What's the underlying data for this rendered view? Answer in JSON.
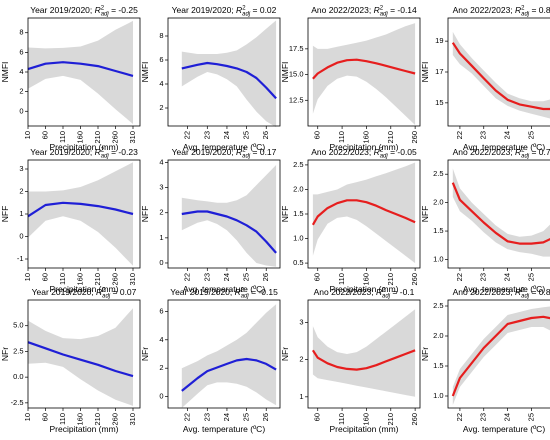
{
  "chart_data": [
    {
      "type": "line",
      "title_prefix": "Year 2019/2020;",
      "title_value": "= -0.25",
      "ylabel": "NMFI",
      "xlabel": "Precipitation (mm)",
      "xlim": [
        10,
        330
      ],
      "xticks": [
        10,
        60,
        110,
        160,
        210,
        260,
        310
      ],
      "ylim": [
        -1.5,
        9.5
      ],
      "yticks": [
        0,
        2,
        4,
        6,
        8
      ],
      "color": "#1f1fd6",
      "series": [
        {
          "x": [
            10,
            60,
            110,
            160,
            210,
            260,
            310
          ],
          "y": [
            4.3,
            4.85,
            5.0,
            4.85,
            4.6,
            4.1,
            3.6
          ],
          "upper": [
            6.5,
            6.4,
            6.45,
            6.6,
            7.2,
            8.3,
            9.2
          ],
          "lower": [
            2.3,
            3.3,
            3.6,
            3.2,
            1.8,
            0.2,
            -1.3
          ]
        }
      ]
    },
    {
      "type": "line",
      "title_prefix": "Year 2019/2020;",
      "title_value": "= 0.02",
      "ylabel": "NMFI",
      "xlabel": "Avg. temperature (ºC)",
      "xlim": [
        21,
        26.7
      ],
      "xticks": [
        22,
        23,
        24,
        25,
        26
      ],
      "ylim": [
        0.5,
        9.5
      ],
      "yticks": [
        2,
        4,
        6,
        8
      ],
      "color": "#1f1fd6",
      "series": [
        {
          "x": [
            21.7,
            22.5,
            23,
            23.5,
            24,
            24.5,
            25,
            25.5,
            26,
            26.5
          ],
          "y": [
            5.3,
            5.6,
            5.75,
            5.65,
            5.5,
            5.3,
            5.0,
            4.5,
            3.7,
            2.8
          ],
          "upper": [
            6.7,
            6.5,
            6.5,
            6.5,
            6.6,
            6.8,
            7.3,
            7.9,
            8.6,
            9.3
          ],
          "lower": [
            3.8,
            4.6,
            5.0,
            4.8,
            4.4,
            3.8,
            2.7,
            1.7,
            0.9,
            0.4
          ]
        }
      ]
    },
    {
      "type": "line",
      "title_prefix": "Ano 2022/2023;",
      "title_value": "= -0.14",
      "ylabel": "NMFI",
      "xlabel": "Precipitation (mm)",
      "xlim": [
        40,
        270
      ],
      "xticks": [
        60,
        110,
        160,
        210,
        260
      ],
      "ylim": [
        10,
        20.5
      ],
      "yticks": [
        12.5,
        15.0,
        17.5
      ],
      "color": "#e61e1e",
      "series": [
        {
          "x": [
            50,
            60,
            80,
            100,
            120,
            140,
            160,
            180,
            200,
            220,
            240,
            260
          ],
          "y": [
            14.6,
            15.1,
            15.7,
            16.15,
            16.4,
            16.45,
            16.3,
            16.1,
            15.85,
            15.6,
            15.35,
            15.1
          ],
          "upper": [
            17.8,
            17.5,
            17.5,
            17.7,
            17.9,
            18.1,
            18.3,
            18.6,
            18.9,
            19.3,
            19.7,
            20.0
          ],
          "lower": [
            11.2,
            12.6,
            13.9,
            14.6,
            14.9,
            14.8,
            14.3,
            13.6,
            12.8,
            11.9,
            11.0,
            10.1
          ]
        }
      ]
    },
    {
      "type": "line",
      "title_prefix": "Ano 2022/2023;",
      "title_value": "= 0.86",
      "ylabel": "NMFI",
      "xlabel": "Avg. temperature (ºC)",
      "xlim": [
        21.5,
        26.2
      ],
      "xticks": [
        22,
        23,
        24,
        25,
        26
      ],
      "ylim": [
        13.5,
        20.5
      ],
      "yticks": [
        15,
        17,
        19
      ],
      "color": "#e61e1e",
      "series": [
        {
          "x": [
            21.7,
            22,
            22.5,
            23,
            23.5,
            24,
            24.5,
            25,
            25.5,
            26
          ],
          "y": [
            18.9,
            18.2,
            17.4,
            16.6,
            15.8,
            15.2,
            14.9,
            14.75,
            14.6,
            14.6
          ],
          "upper": [
            19.6,
            18.8,
            17.9,
            17.1,
            16.3,
            15.6,
            15.3,
            15.1,
            15.1,
            15.3
          ],
          "lower": [
            18.1,
            17.5,
            16.9,
            16.1,
            15.3,
            14.8,
            14.5,
            14.3,
            14.1,
            13.9
          ]
        }
      ]
    },
    {
      "type": "line",
      "title_prefix": "Year 2019/2020;",
      "title_value": "= -0.23",
      "ylabel": "NFF",
      "xlabel": "Precipitation (mm)",
      "xlim": [
        10,
        330
      ],
      "xticks": [
        10,
        60,
        110,
        160,
        210,
        260,
        310
      ],
      "ylim": [
        -1.4,
        3.4
      ],
      "yticks": [
        -1,
        0,
        1,
        2,
        3
      ],
      "color": "#1f1fd6",
      "series": [
        {
          "x": [
            10,
            60,
            110,
            160,
            210,
            260,
            310
          ],
          "y": [
            0.9,
            1.4,
            1.5,
            1.45,
            1.35,
            1.2,
            1.0
          ],
          "upper": [
            2.0,
            2.0,
            2.05,
            2.2,
            2.5,
            2.9,
            3.3
          ],
          "lower": [
            -0.05,
            0.7,
            0.9,
            0.7,
            0.2,
            -0.5,
            -1.3
          ]
        }
      ]
    },
    {
      "type": "line",
      "title_prefix": "Year 2019/2020;",
      "title_value": "= 0.17",
      "ylabel": "NFF",
      "xlabel": "Avg. temperature (ºC)",
      "xlim": [
        21,
        26.7
      ],
      "xticks": [
        22,
        23,
        24,
        25,
        26
      ],
      "ylim": [
        -0.2,
        4.1
      ],
      "yticks": [
        0,
        1,
        2,
        3,
        4
      ],
      "color": "#1f1fd6",
      "series": [
        {
          "x": [
            21.7,
            22.5,
            23,
            23.5,
            24,
            24.5,
            25,
            25.5,
            26,
            26.5
          ],
          "y": [
            1.95,
            2.05,
            2.05,
            1.95,
            1.85,
            1.7,
            1.5,
            1.25,
            0.85,
            0.4
          ],
          "upper": [
            2.6,
            2.5,
            2.45,
            2.4,
            2.4,
            2.5,
            2.7,
            3.1,
            3.5,
            3.9
          ],
          "lower": [
            1.3,
            1.6,
            1.7,
            1.55,
            1.3,
            0.9,
            0.4,
            0.0,
            -0.1,
            -0.15
          ]
        }
      ]
    },
    {
      "type": "line",
      "title_prefix": "Ano 2022/2023;",
      "title_value": "= -0.05",
      "ylabel": "NFF",
      "xlabel": "Precipitation (mm)",
      "xlim": [
        40,
        270
      ],
      "xticks": [
        60,
        110,
        160,
        210,
        260
      ],
      "ylim": [
        0.4,
        2.6
      ],
      "yticks": [
        0.5,
        1.0,
        1.5,
        2.0,
        2.5
      ],
      "color": "#e61e1e",
      "series": [
        {
          "x": [
            50,
            60,
            80,
            100,
            120,
            140,
            160,
            180,
            200,
            220,
            240,
            260
          ],
          "y": [
            1.28,
            1.45,
            1.62,
            1.72,
            1.78,
            1.78,
            1.74,
            1.67,
            1.58,
            1.5,
            1.42,
            1.33
          ],
          "upper": [
            1.9,
            1.9,
            1.95,
            2.0,
            2.1,
            2.15,
            2.2,
            2.27,
            2.33,
            2.4,
            2.47,
            2.55
          ],
          "lower": [
            0.65,
            0.98,
            1.3,
            1.42,
            1.45,
            1.38,
            1.25,
            1.1,
            0.95,
            0.8,
            0.65,
            0.5
          ]
        }
      ]
    },
    {
      "type": "line",
      "title_prefix": "Ano 2022/2023;",
      "title_value": "= 0.78",
      "ylabel": "NFF",
      "xlabel": "Avg. temperature (ºC)",
      "xlim": [
        21.5,
        26.2
      ],
      "xticks": [
        22,
        23,
        24,
        25,
        26
      ],
      "ylim": [
        0.85,
        2.75
      ],
      "yticks": [
        1.0,
        1.5,
        2.0,
        2.5
      ],
      "color": "#e61e1e",
      "series": [
        {
          "x": [
            21.7,
            22,
            22.5,
            23,
            23.5,
            24,
            24.5,
            25,
            25.5,
            26
          ],
          "y": [
            2.35,
            2.05,
            1.85,
            1.65,
            1.47,
            1.32,
            1.28,
            1.28,
            1.3,
            1.4
          ],
          "upper": [
            2.6,
            2.25,
            2.0,
            1.8,
            1.6,
            1.45,
            1.4,
            1.42,
            1.5,
            1.7
          ],
          "lower": [
            2.1,
            1.85,
            1.68,
            1.48,
            1.3,
            1.18,
            1.13,
            1.1,
            1.05,
            1.05
          ]
        }
      ]
    },
    {
      "type": "line",
      "title_prefix": "Year 2019/2020;",
      "title_value": "= 0.07",
      "ylabel": "NFr",
      "xlabel": "Precipitation (mm)",
      "xlim": [
        10,
        330
      ],
      "xticks": [
        10,
        60,
        110,
        160,
        210,
        260,
        310
      ],
      "ylim": [
        -3,
        7.5
      ],
      "yticks": [
        -2.5,
        0.0,
        2.5,
        5.0
      ],
      "color": "#1f1fd6",
      "series": [
        {
          "x": [
            10,
            60,
            110,
            160,
            210,
            260,
            310
          ],
          "y": [
            3.4,
            2.8,
            2.2,
            1.7,
            1.2,
            0.6,
            0.1
          ],
          "upper": [
            5.5,
            4.5,
            3.8,
            3.7,
            4.0,
            4.8,
            6.7
          ],
          "lower": [
            1.3,
            1.4,
            1.0,
            -0.2,
            -1.3,
            -2.2,
            -2.8
          ]
        }
      ]
    },
    {
      "type": "line",
      "title_prefix": "Year 2019/2020;",
      "title_value": "= -0.15",
      "ylabel": "NFr",
      "xlabel": "Avg. temperature (ºC)",
      "xlim": [
        21,
        26.7
      ],
      "xticks": [
        22,
        23,
        24,
        25,
        26
      ],
      "ylim": [
        -0.8,
        6.8
      ],
      "yticks": [
        0,
        2,
        4,
        6
      ],
      "color": "#1f1fd6",
      "series": [
        {
          "x": [
            21.7,
            22.5,
            23,
            23.5,
            24,
            24.5,
            25,
            25.5,
            26,
            26.5
          ],
          "y": [
            0.4,
            1.3,
            1.8,
            2.05,
            2.3,
            2.55,
            2.65,
            2.55,
            2.3,
            1.9
          ],
          "upper": [
            2.0,
            2.5,
            2.9,
            3.2,
            3.6,
            4.0,
            4.5,
            5.2,
            5.9,
            6.5
          ],
          "lower": [
            -0.8,
            0.2,
            0.8,
            1.0,
            1.0,
            0.9,
            0.7,
            0.3,
            -0.2,
            -0.6
          ]
        }
      ]
    },
    {
      "type": "line",
      "title_prefix": "Ano 2022/2023;",
      "title_value": "= -0.1",
      "ylabel": "NFr",
      "xlabel": "Precipitation (mm)",
      "xlim": [
        40,
        270
      ],
      "xticks": [
        60,
        110,
        160,
        210,
        260
      ],
      "ylim": [
        0.7,
        3.6
      ],
      "yticks": [
        1,
        2,
        3
      ],
      "color": "#e61e1e",
      "series": [
        {
          "x": [
            50,
            60,
            80,
            100,
            120,
            140,
            160,
            180,
            200,
            220,
            240,
            260
          ],
          "y": [
            2.25,
            2.05,
            1.9,
            1.8,
            1.75,
            1.73,
            1.77,
            1.85,
            1.95,
            2.05,
            2.15,
            2.25
          ],
          "upper": [
            2.9,
            2.6,
            2.35,
            2.2,
            2.15,
            2.2,
            2.35,
            2.55,
            2.75,
            2.95,
            3.15,
            3.35
          ],
          "lower": [
            1.6,
            1.5,
            1.45,
            1.4,
            1.35,
            1.3,
            1.25,
            1.2,
            1.15,
            1.1,
            1.05,
            1.0
          ]
        }
      ]
    },
    {
      "type": "line",
      "title_prefix": "Ano 2022/2023;",
      "title_value": "= 0.84",
      "ylabel": "NFr",
      "xlabel": "Avg. temperature (ºC)",
      "xlim": [
        21.5,
        26.2
      ],
      "xticks": [
        22,
        23,
        24,
        25,
        26
      ],
      "ylim": [
        0.8,
        2.6
      ],
      "yticks": [
        1.0,
        1.5,
        2.0,
        2.5
      ],
      "color": "#e61e1e",
      "series": [
        {
          "x": [
            21.7,
            22,
            22.5,
            23,
            23.5,
            24,
            24.5,
            25,
            25.5,
            26
          ],
          "y": [
            1.0,
            1.3,
            1.55,
            1.8,
            2.0,
            2.2,
            2.25,
            2.3,
            2.32,
            2.28
          ],
          "upper": [
            1.15,
            1.45,
            1.7,
            1.95,
            2.15,
            2.35,
            2.4,
            2.45,
            2.48,
            2.5
          ],
          "lower": [
            0.85,
            1.15,
            1.4,
            1.65,
            1.85,
            2.05,
            2.1,
            2.15,
            2.15,
            2.05
          ]
        }
      ]
    }
  ]
}
